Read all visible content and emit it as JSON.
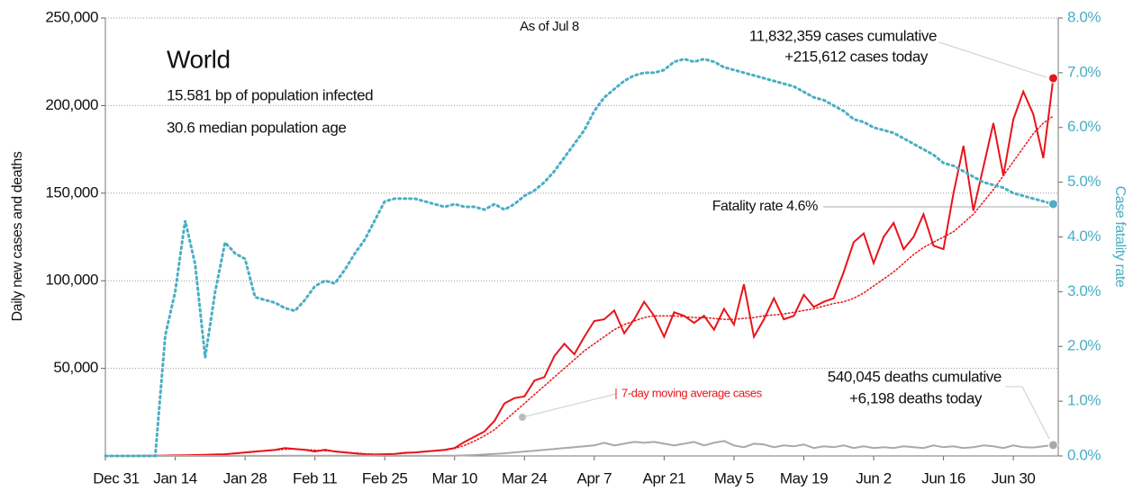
{
  "chart_data": {
    "type": "line",
    "title": "World",
    "subtitle": [
      "15.581 bp of population infected",
      "30.6 median population age"
    ],
    "annotations": {
      "as_of": "As of Jul 8",
      "cases": [
        "11,832,359 cases cumulative",
        "+215,612 cases today"
      ],
      "fatality": "Fatality rate 4.6%",
      "deaths": [
        "540,045 deaths cumulative",
        "+6,198 deaths today"
      ]
    },
    "ylabel": "Daily new cases and deaths",
    "y2label": "Case fatality rate",
    "x": [
      0,
      2,
      4,
      6,
      8,
      10,
      12,
      14,
      16,
      18,
      20,
      22,
      24,
      26,
      28,
      30,
      32,
      34,
      36,
      38,
      40,
      42,
      44,
      46,
      48,
      50,
      52,
      54,
      56,
      58,
      60,
      62,
      64,
      66,
      68,
      70,
      72,
      74,
      76,
      78,
      80,
      82,
      84,
      86,
      88,
      90,
      92,
      94,
      96,
      98,
      100,
      102,
      104,
      106,
      108,
      110,
      112,
      114,
      116,
      118,
      120,
      122,
      124,
      126,
      128,
      130,
      132,
      134,
      136,
      138,
      140,
      142,
      144,
      146,
      148,
      150,
      152,
      154,
      156,
      158,
      160,
      162,
      164,
      166,
      168,
      170,
      172,
      174,
      176,
      178,
      180,
      182,
      184,
      186,
      188,
      190
    ],
    "xlim": [
      0,
      191
    ],
    "xticks": [
      {
        "value": 0,
        "label": "Dec 31"
      },
      {
        "value": 14,
        "label": "Jan 14"
      },
      {
        "value": 28,
        "label": "Jan 28"
      },
      {
        "value": 42,
        "label": "Feb 11"
      },
      {
        "value": 56,
        "label": "Feb 25"
      },
      {
        "value": 70,
        "label": "Mar 10"
      },
      {
        "value": 84,
        "label": "Mar 24"
      },
      {
        "value": 98,
        "label": "Apr 7"
      },
      {
        "value": 112,
        "label": "Apr 21"
      },
      {
        "value": 126,
        "label": "May 5"
      },
      {
        "value": 140,
        "label": "May 19"
      },
      {
        "value": 154,
        "label": "Jun 2"
      },
      {
        "value": 168,
        "label": "Jun 16"
      },
      {
        "value": 182,
        "label": "Jun 30"
      }
    ],
    "ylim": [
      0,
      250000
    ],
    "yticks": [
      {
        "value": 50000,
        "label": "50,000"
      },
      {
        "value": 100000,
        "label": "100,000"
      },
      {
        "value": 150000,
        "label": "150,000"
      },
      {
        "value": 200000,
        "label": "200,000"
      },
      {
        "value": 250000,
        "label": "250,000"
      }
    ],
    "y2lim": [
      0,
      8
    ],
    "y2ticks": [
      {
        "value": 0,
        "label": "0.0%"
      },
      {
        "value": 1,
        "label": "1.0%"
      },
      {
        "value": 2,
        "label": "2.0%"
      },
      {
        "value": 3,
        "label": "3.0%"
      },
      {
        "value": 4,
        "label": "4.0%"
      },
      {
        "value": 5,
        "label": "5.0%"
      },
      {
        "value": 6,
        "label": "6.0%"
      },
      {
        "value": 7,
        "label": "7.0%"
      },
      {
        "value": 8,
        "label": "8.0%"
      }
    ],
    "grid": true,
    "series": [
      {
        "color": "#e8141b",
        "style": "solid",
        "values": [
          0,
          0,
          0,
          0,
          100,
          100,
          200,
          300,
          400,
          500,
          600,
          800,
          1000,
          1500,
          2000,
          2500,
          3000,
          3500,
          4500,
          4000,
          3500,
          2500,
          3500,
          2500,
          2000,
          1500,
          1000,
          800,
          1000,
          1200,
          1800,
          2000,
          2500,
          3000,
          3500,
          4500,
          8000,
          11000,
          14000,
          20000,
          30000,
          33000,
          34000,
          43000,
          45000,
          57000,
          64000,
          58000,
          68000,
          77000,
          78000,
          83000,
          70000,
          78000,
          88000,
          80000,
          68000,
          82000,
          80000,
          76000,
          80000,
          72000,
          84000,
          75000,
          98000,
          68000,
          78000,
          90000,
          78000,
          80000,
          92000,
          85000,
          88000,
          90000,
          105000,
          122000,
          127000,
          110000,
          125000,
          133000,
          118000,
          125000,
          138000,
          120000,
          118000,
          150000,
          177000,
          140000,
          165000,
          190000,
          160000,
          192000,
          208000,
          195000,
          170000,
          215612
        ]
      },
      {
        "name": "7-day moving average cases",
        "color": "#e8141b",
        "style": "dotted",
        "values": [
          0,
          0,
          0,
          0,
          50,
          100,
          150,
          250,
          350,
          450,
          550,
          750,
          950,
          1300,
          1800,
          2300,
          2800,
          3300,
          3800,
          3900,
          3700,
          3300,
          3000,
          2700,
          2200,
          1700,
          1300,
          1000,
          1000,
          1100,
          1500,
          1900,
          2300,
          2800,
          3300,
          4200,
          6000,
          8500,
          11500,
          15000,
          20000,
          25000,
          30000,
          35000,
          40000,
          45000,
          50000,
          55000,
          60000,
          64000,
          68000,
          72000,
          75000,
          77000,
          79000,
          80000,
          80000,
          80000,
          79500,
          79000,
          79000,
          78500,
          78000,
          78000,
          78500,
          79000,
          80000,
          80500,
          81000,
          82000,
          83000,
          84000,
          85500,
          87000,
          88000,
          90000,
          93000,
          97000,
          101000,
          105000,
          110000,
          115000,
          119000,
          122000,
          125000,
          128000,
          133000,
          138000,
          145000,
          152000,
          160000,
          168000,
          176000,
          184000,
          190000,
          194000
        ]
      },
      {
        "color": "#a9a9a9",
        "style": "solid",
        "values": [
          0,
          0,
          0,
          0,
          0,
          0,
          0,
          0,
          0,
          0,
          0,
          0,
          20,
          30,
          40,
          50,
          60,
          70,
          80,
          90,
          100,
          100,
          100,
          100,
          100,
          100,
          100,
          100,
          50,
          50,
          50,
          50,
          50,
          60,
          80,
          150,
          300,
          500,
          800,
          1200,
          1500,
          2000,
          2500,
          3000,
          3500,
          4000,
          4500,
          5000,
          5500,
          6000,
          7500,
          6000,
          7000,
          8000,
          7500,
          8000,
          7000,
          6000,
          7000,
          8000,
          6000,
          7500,
          8500,
          6000,
          5000,
          7000,
          6500,
          5000,
          6000,
          5500,
          6500,
          4500,
          5500,
          5000,
          6000,
          4500,
          5500,
          4500,
          5000,
          4500,
          5500,
          5000,
          4500,
          6000,
          5000,
          5500,
          4500,
          5000,
          6000,
          5500,
          4500,
          6000,
          5000,
          4800,
          5500,
          6198
        ]
      },
      {
        "color": "#4aaec4",
        "style": "dotted",
        "axis": "y2",
        "values": [
          0,
          0,
          0,
          0,
          0,
          0,
          2.2,
          3.0,
          4.3,
          3.5,
          1.8,
          3.0,
          3.9,
          3.7,
          3.6,
          2.9,
          2.85,
          2.8,
          2.7,
          2.65,
          2.85,
          3.1,
          3.2,
          3.15,
          3.4,
          3.7,
          3.95,
          4.3,
          4.65,
          4.7,
          4.7,
          4.7,
          4.65,
          4.6,
          4.55,
          4.6,
          4.55,
          4.55,
          4.5,
          4.6,
          4.5,
          4.6,
          4.75,
          4.85,
          5.0,
          5.2,
          5.45,
          5.7,
          5.95,
          6.3,
          6.55,
          6.7,
          6.85,
          6.95,
          7.0,
          7.0,
          7.05,
          7.2,
          7.25,
          7.2,
          7.25,
          7.2,
          7.1,
          7.05,
          7.0,
          6.95,
          6.9,
          6.85,
          6.8,
          6.75,
          6.65,
          6.55,
          6.5,
          6.4,
          6.3,
          6.15,
          6.1,
          6.0,
          5.95,
          5.9,
          5.8,
          5.7,
          5.6,
          5.5,
          5.35,
          5.3,
          5.2,
          5.1,
          5.0,
          4.95,
          4.9,
          4.8,
          4.75,
          4.7,
          4.65,
          4.6
        ]
      }
    ]
  }
}
